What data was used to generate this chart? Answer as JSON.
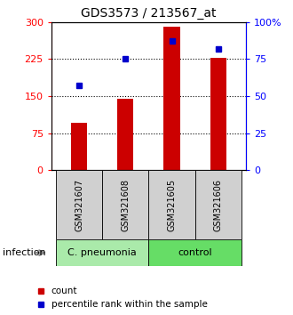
{
  "title": "GDS3573 / 213567_at",
  "categories": [
    "GSM321607",
    "GSM321608",
    "GSM321605",
    "GSM321606"
  ],
  "bar_values": [
    95,
    145,
    290,
    228
  ],
  "percentile_values": [
    57,
    75,
    87,
    82
  ],
  "bar_color": "#cc0000",
  "percentile_color": "#0000cc",
  "ylim_left": [
    0,
    300
  ],
  "ylim_right": [
    0,
    100
  ],
  "yticks_left": [
    0,
    75,
    150,
    225,
    300
  ],
  "ytick_labels_left": [
    "0",
    "75",
    "150",
    "225",
    "300"
  ],
  "yticks_right": [
    0,
    25,
    50,
    75,
    100
  ],
  "ytick_labels_right": [
    "0",
    "25",
    "50",
    "75",
    "100%"
  ],
  "hlines": [
    75,
    150,
    225
  ],
  "groups": [
    {
      "label": "C. pneumonia",
      "indices": [
        0,
        1
      ],
      "color": "#aaeaaa"
    },
    {
      "label": "control",
      "indices": [
        2,
        3
      ],
      "color": "#66dd66"
    }
  ],
  "sample_box_color": "#d0d0d0",
  "infection_label": "infection",
  "legend_items": [
    {
      "label": "count",
      "color": "#cc0000"
    },
    {
      "label": "percentile rank within the sample",
      "color": "#0000cc"
    }
  ],
  "bar_width": 0.35,
  "tick_fontsize": 8,
  "title_fontsize": 10,
  "cat_fontsize": 7,
  "group_fontsize": 8,
  "legend_fontsize": 7.5,
  "infection_fontsize": 8
}
